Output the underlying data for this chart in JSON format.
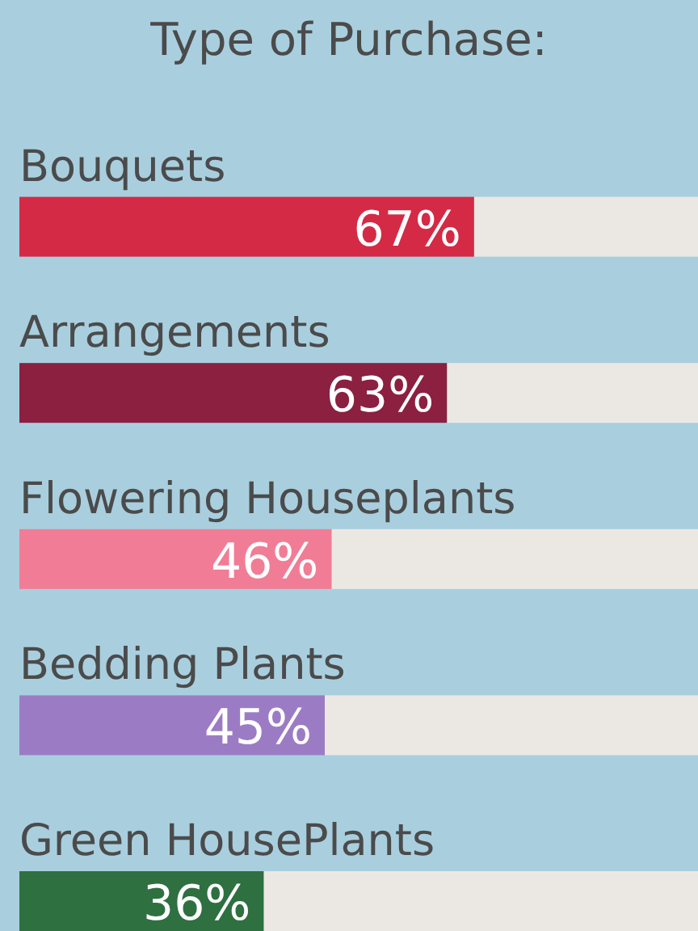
{
  "chart_data": {
    "type": "bar",
    "orientation": "horizontal",
    "title": "Type of Purchase:",
    "categories": [
      "Bouquets",
      "Arrangements",
      "Flowering Houseplants",
      "Bedding Plants",
      "Green HousePlants"
    ],
    "values": [
      67,
      63,
      46,
      45,
      36
    ],
    "colors": [
      "#d42a45",
      "#8b2040",
      "#f07d95",
      "#9b7cc4",
      "#2e7040"
    ],
    "value_labels": [
      "67%",
      "63%",
      "46%",
      "45%",
      "36%"
    ],
    "xlim": [
      0,
      100
    ]
  }
}
